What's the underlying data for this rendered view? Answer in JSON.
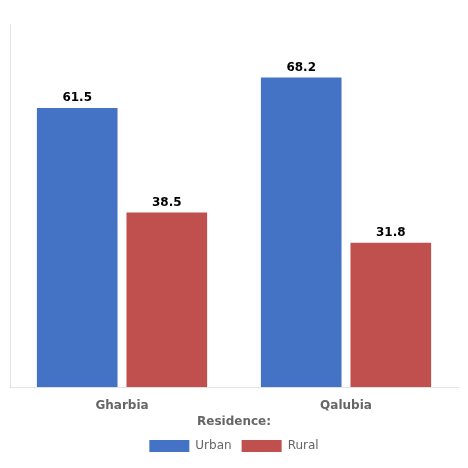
{
  "chart_data": {
    "type": "bar",
    "categories": [
      "Gharbia",
      "Qalubia"
    ],
    "series": [
      {
        "name": "Urban",
        "color": "#4472C4",
        "values": [
          61.5,
          68.2
        ]
      },
      {
        "name": "Rural",
        "color": "#C0504D",
        "values": [
          38.5,
          31.8
        ]
      }
    ],
    "annotations": [
      "Residence:"
    ],
    "ylim": [
      0,
      80
    ],
    "data_labels": true,
    "tick_labels": "x",
    "grid": false,
    "legend": "bottom"
  }
}
